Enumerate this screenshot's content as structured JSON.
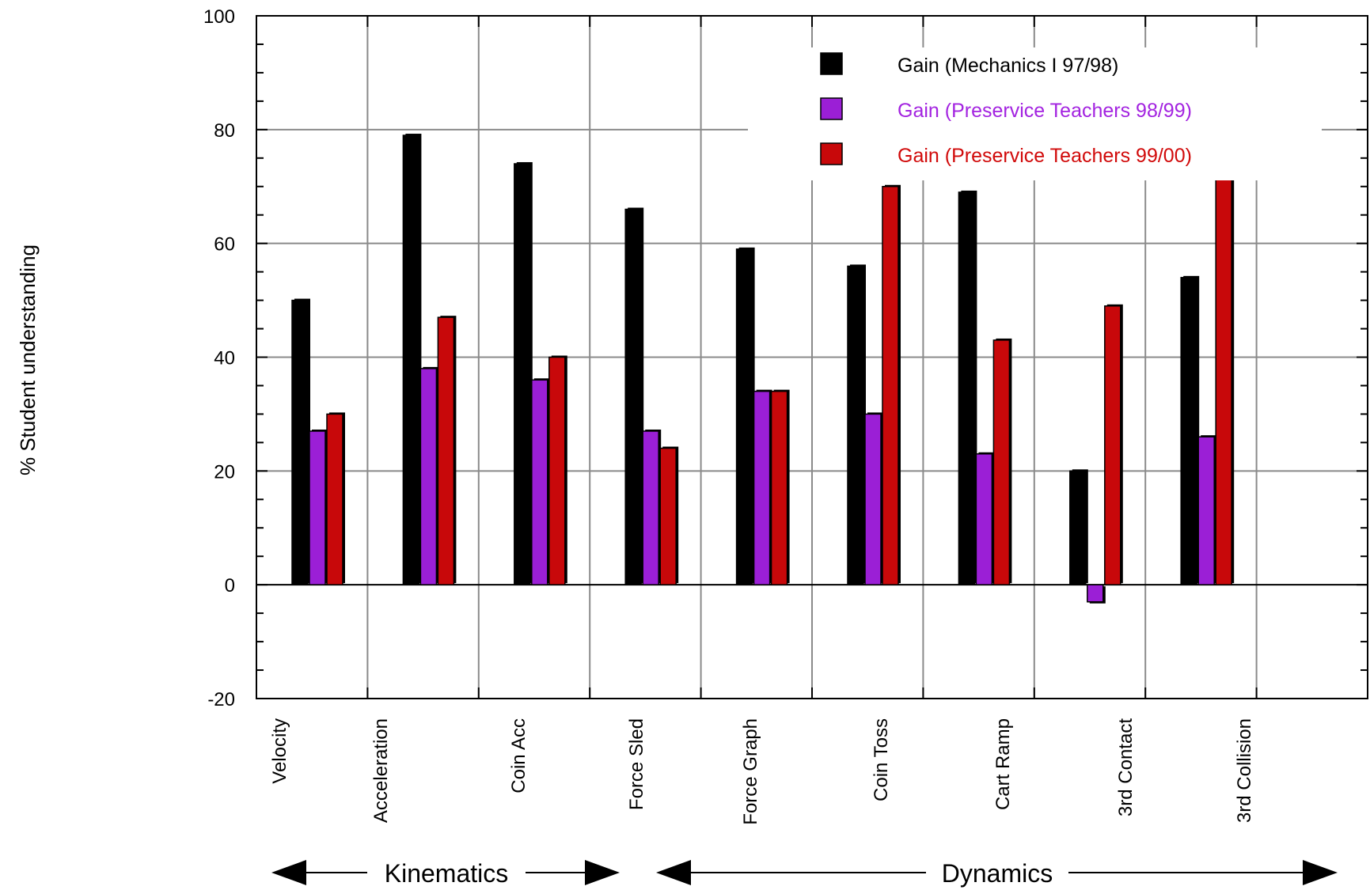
{
  "chart_data": {
    "type": "bar",
    "ylabel": "% Student understanding",
    "ylim": [
      -20,
      100
    ],
    "yticks": [
      -20,
      0,
      20,
      40,
      60,
      80,
      100
    ],
    "grid": true,
    "legend_position": "top-right",
    "categories": [
      "Velocity",
      "Acceleration",
      "Coin Acc",
      "Force Sled",
      "Force Graph",
      "Coin Toss",
      "Cart Ramp",
      "3rd Contact",
      "3rd Collision"
    ],
    "series": [
      {
        "name": "Gain (Mechanics I 97/98)",
        "color": "#000000",
        "text_color": "#000000",
        "values": [
          50,
          79,
          74,
          66,
          59,
          56,
          69,
          20,
          54
        ]
      },
      {
        "name": "Gain (Preservice Teachers 98/99)",
        "color": "#9b1fd6",
        "text_color": "#a323e0",
        "values": [
          27,
          38,
          36,
          27,
          34,
          30,
          23,
          -3,
          26
        ]
      },
      {
        "name": "Gain (Preservice Teachers 99/00)",
        "color": "#c8080a",
        "text_color": "#d10a0a",
        "values": [
          30,
          47,
          40,
          24,
          34,
          70,
          43,
          49,
          83
        ]
      }
    ],
    "groups": [
      {
        "label": "Kinematics",
        "categories": [
          "Velocity",
          "Acceleration",
          "Coin Acc"
        ]
      },
      {
        "label": "Dynamics",
        "categories": [
          "Force Sled",
          "Force Graph",
          "Coin Toss",
          "Cart Ramp",
          "3rd Contact",
          "3rd Collision"
        ]
      }
    ]
  }
}
